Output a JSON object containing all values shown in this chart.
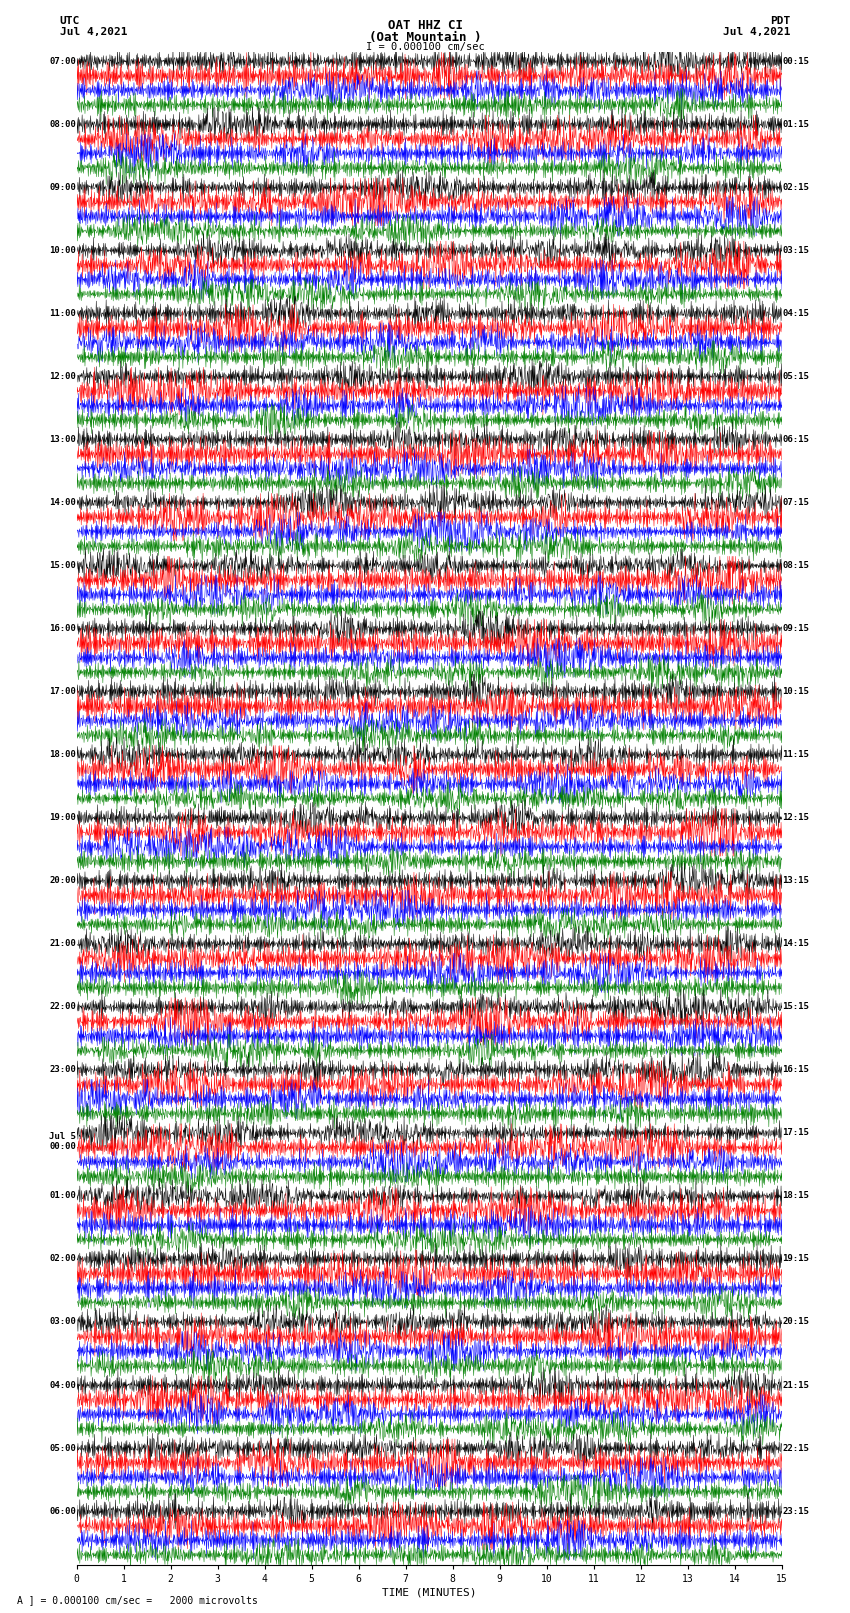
{
  "title_line1": "OAT HHZ CI",
  "title_line2": "(Oat Mountain )",
  "scale_label": "I = 0.000100 cm/sec",
  "left_label_top": "UTC",
  "left_label_date": "Jul 4,2021",
  "right_label_top": "PDT",
  "right_label_date": "Jul 4,2021",
  "bottom_label": "TIME (MINUTES)",
  "bottom_note": "A ] = 0.000100 cm/sec =   2000 microvolts",
  "num_rows": 24,
  "display_minutes": 15,
  "colors": [
    "black",
    "red",
    "blue",
    "green"
  ],
  "background": "white",
  "left_times_utc": [
    "07:00",
    "08:00",
    "09:00",
    "10:00",
    "11:00",
    "12:00",
    "13:00",
    "14:00",
    "15:00",
    "16:00",
    "17:00",
    "18:00",
    "19:00",
    "20:00",
    "21:00",
    "22:00",
    "23:00",
    "Jul 5\n00:00",
    "01:00",
    "02:00",
    "03:00",
    "04:00",
    "05:00",
    "06:00"
  ],
  "right_times_pdt": [
    "00:15",
    "01:15",
    "02:15",
    "03:15",
    "04:15",
    "05:15",
    "06:15",
    "07:15",
    "08:15",
    "09:15",
    "10:15",
    "11:15",
    "12:15",
    "13:15",
    "14:15",
    "15:15",
    "16:15",
    "17:15",
    "18:15",
    "19:15",
    "20:15",
    "21:15",
    "22:15",
    "23:15"
  ]
}
